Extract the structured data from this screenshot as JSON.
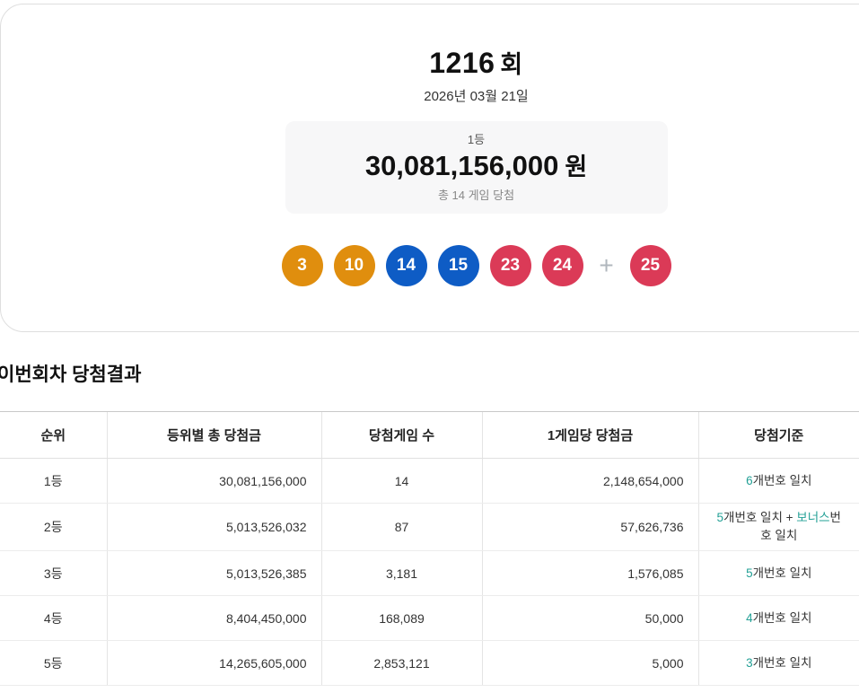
{
  "colors": {
    "highlight_teal": "#23a096",
    "ball_orange": "#e08e0e",
    "ball_blue": "#0e5cc5",
    "ball_red": "#db3a57",
    "plus_gray": "#b1b7be"
  },
  "header": {
    "round_number": "1216",
    "round_suffix": "회",
    "date": "2026년 03월 21일",
    "prize": {
      "rank_label": "1등",
      "amount": "30,081,156,000",
      "currency": "원",
      "games_summary": "총 14 게임 당첨"
    }
  },
  "draw": {
    "plus_sign": "+",
    "balls": [
      {
        "number": "3",
        "color": "#e08e0e"
      },
      {
        "number": "10",
        "color": "#e08e0e"
      },
      {
        "number": "14",
        "color": "#0e5cc5"
      },
      {
        "number": "15",
        "color": "#0e5cc5"
      },
      {
        "number": "23",
        "color": "#db3a57"
      },
      {
        "number": "24",
        "color": "#db3a57"
      }
    ],
    "bonus_ball": {
      "number": "25",
      "color": "#db3a57"
    }
  },
  "results": {
    "title": "이번회차 당첨결과",
    "columns": [
      "순위",
      "등위별 총 당첨금",
      "당첨게임 수",
      "1게임당 당첨금",
      "당첨기준"
    ],
    "rows": [
      {
        "rank": "1등",
        "total_prize": "30,081,156,000",
        "winning_games": "14",
        "prize_per_game": "2,148,654,000",
        "criteria_parts": [
          {
            "text": "6",
            "highlight": true
          },
          {
            "text": "개번호 일치",
            "highlight": false
          }
        ]
      },
      {
        "rank": "2등",
        "total_prize": "5,013,526,032",
        "winning_games": "87",
        "prize_per_game": "57,626,736",
        "criteria_parts": [
          {
            "text": "5",
            "highlight": true
          },
          {
            "text": "개번호 일치 + ",
            "highlight": false
          },
          {
            "text": "보너스",
            "highlight": true
          },
          {
            "text": "번호 일치",
            "highlight": false
          }
        ]
      },
      {
        "rank": "3등",
        "total_prize": "5,013,526,385",
        "winning_games": "3,181",
        "prize_per_game": "1,576,085",
        "criteria_parts": [
          {
            "text": "5",
            "highlight": true
          },
          {
            "text": "개번호 일치",
            "highlight": false
          }
        ]
      },
      {
        "rank": "4등",
        "total_prize": "8,404,450,000",
        "winning_games": "168,089",
        "prize_per_game": "50,000",
        "criteria_parts": [
          {
            "text": "4",
            "highlight": true
          },
          {
            "text": "개번호 일치",
            "highlight": false
          }
        ]
      },
      {
        "rank": "5등",
        "total_prize": "14,265,605,000",
        "winning_games": "2,853,121",
        "prize_per_game": "5,000",
        "criteria_parts": [
          {
            "text": "3",
            "highlight": true
          },
          {
            "text": "개번호 일치",
            "highlight": false
          }
        ]
      }
    ]
  }
}
